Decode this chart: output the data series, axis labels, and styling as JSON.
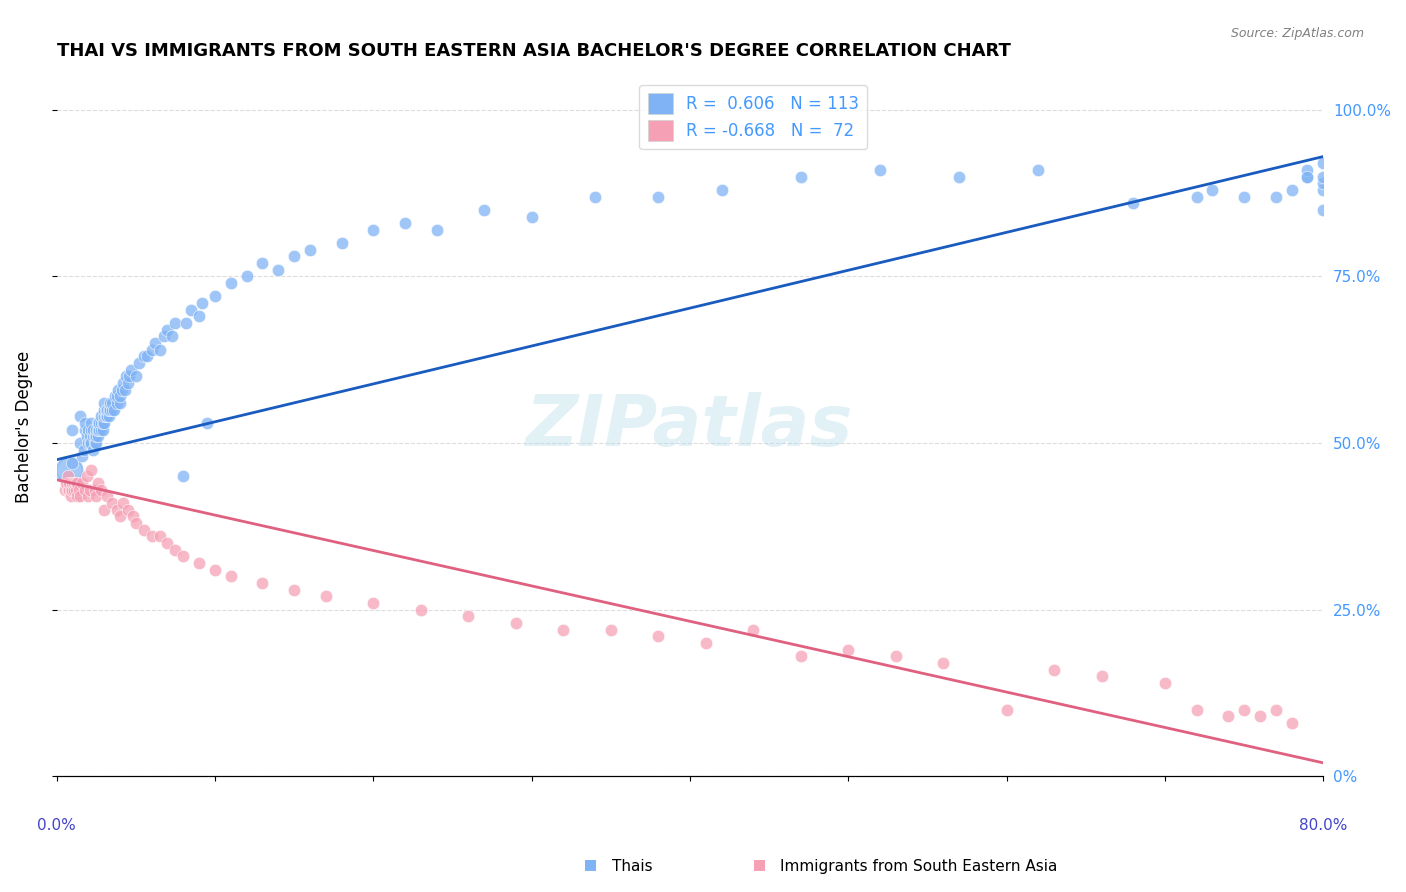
{
  "title": "THAI VS IMMIGRANTS FROM SOUTH EASTERN ASIA BACHELOR'S DEGREE CORRELATION CHART",
  "source": "Source: ZipAtlas.com",
  "ylabel": "Bachelor's Degree",
  "ytick_labels": [
    "0%",
    "25.0%",
    "50.0%",
    "75.0%",
    "100.0%"
  ],
  "ytick_values": [
    0,
    0.25,
    0.5,
    0.75,
    1.0
  ],
  "xrange": [
    0,
    0.8
  ],
  "yrange": [
    0,
    1.05
  ],
  "blue_color": "#7fb3f5",
  "pink_color": "#f5a0b5",
  "blue_line_color": "#1a5bbf",
  "pink_line_color": "#e06080",
  "legend_blue_label": "R =  0.606   N = 113",
  "legend_pink_label": "R = -0.668   N =  72",
  "watermark": "ZIPatlas",
  "bottom_legend_blue": "Thais",
  "bottom_legend_pink": "Immigrants from South Eastern Asia",
  "blue_scatter_x": [
    0.01,
    0.01,
    0.015,
    0.015,
    0.016,
    0.017,
    0.018,
    0.018,
    0.019,
    0.02,
    0.02,
    0.021,
    0.021,
    0.022,
    0.022,
    0.022,
    0.023,
    0.023,
    0.023,
    0.024,
    0.024,
    0.025,
    0.025,
    0.025,
    0.026,
    0.026,
    0.026,
    0.027,
    0.027,
    0.028,
    0.028,
    0.028,
    0.029,
    0.029,
    0.03,
    0.03,
    0.03,
    0.03,
    0.031,
    0.031,
    0.032,
    0.032,
    0.033,
    0.033,
    0.034,
    0.034,
    0.035,
    0.035,
    0.036,
    0.037,
    0.038,
    0.038,
    0.039,
    0.04,
    0.04,
    0.041,
    0.042,
    0.043,
    0.044,
    0.045,
    0.046,
    0.047,
    0.05,
    0.052,
    0.055,
    0.057,
    0.06,
    0.062,
    0.065,
    0.068,
    0.07,
    0.073,
    0.075,
    0.08,
    0.082,
    0.085,
    0.09,
    0.092,
    0.095,
    0.1,
    0.11,
    0.12,
    0.13,
    0.14,
    0.15,
    0.16,
    0.18,
    0.2,
    0.22,
    0.24,
    0.27,
    0.3,
    0.34,
    0.38,
    0.42,
    0.47,
    0.52,
    0.57,
    0.62,
    0.68,
    0.72,
    0.73,
    0.75,
    0.77,
    0.78,
    0.79,
    0.79,
    0.79,
    0.8,
    0.8,
    0.8,
    0.8,
    0.8
  ],
  "blue_scatter_y": [
    0.47,
    0.52,
    0.5,
    0.54,
    0.48,
    0.49,
    0.52,
    0.53,
    0.51,
    0.5,
    0.52,
    0.5,
    0.51,
    0.5,
    0.52,
    0.53,
    0.49,
    0.51,
    0.52,
    0.5,
    0.51,
    0.5,
    0.51,
    0.52,
    0.51,
    0.52,
    0.53,
    0.52,
    0.53,
    0.52,
    0.53,
    0.54,
    0.52,
    0.53,
    0.53,
    0.54,
    0.55,
    0.56,
    0.54,
    0.55,
    0.54,
    0.55,
    0.54,
    0.55,
    0.55,
    0.56,
    0.55,
    0.56,
    0.55,
    0.57,
    0.56,
    0.57,
    0.58,
    0.56,
    0.57,
    0.58,
    0.59,
    0.58,
    0.6,
    0.59,
    0.6,
    0.61,
    0.6,
    0.62,
    0.63,
    0.63,
    0.64,
    0.65,
    0.64,
    0.66,
    0.67,
    0.66,
    0.68,
    0.45,
    0.68,
    0.7,
    0.69,
    0.71,
    0.53,
    0.72,
    0.74,
    0.75,
    0.77,
    0.76,
    0.78,
    0.79,
    0.8,
    0.82,
    0.83,
    0.82,
    0.85,
    0.84,
    0.87,
    0.87,
    0.88,
    0.9,
    0.91,
    0.9,
    0.91,
    0.86,
    0.87,
    0.88,
    0.87,
    0.87,
    0.88,
    0.9,
    0.91,
    0.9,
    0.85,
    0.88,
    0.89,
    0.9,
    0.92
  ],
  "pink_scatter_x": [
    0.005,
    0.006,
    0.007,
    0.007,
    0.008,
    0.008,
    0.009,
    0.009,
    0.01,
    0.01,
    0.011,
    0.011,
    0.012,
    0.012,
    0.013,
    0.013,
    0.014,
    0.015,
    0.016,
    0.018,
    0.019,
    0.02,
    0.021,
    0.022,
    0.024,
    0.025,
    0.026,
    0.028,
    0.03,
    0.032,
    0.035,
    0.038,
    0.04,
    0.042,
    0.045,
    0.048,
    0.05,
    0.055,
    0.06,
    0.065,
    0.07,
    0.075,
    0.08,
    0.09,
    0.1,
    0.11,
    0.13,
    0.15,
    0.17,
    0.2,
    0.23,
    0.26,
    0.29,
    0.32,
    0.35,
    0.38,
    0.41,
    0.44,
    0.47,
    0.5,
    0.53,
    0.56,
    0.6,
    0.63,
    0.66,
    0.7,
    0.72,
    0.74,
    0.75,
    0.76,
    0.77,
    0.78
  ],
  "pink_scatter_y": [
    0.43,
    0.44,
    0.43,
    0.45,
    0.43,
    0.44,
    0.42,
    0.43,
    0.43,
    0.44,
    0.43,
    0.44,
    0.44,
    0.43,
    0.42,
    0.44,
    0.43,
    0.42,
    0.44,
    0.43,
    0.45,
    0.42,
    0.43,
    0.46,
    0.43,
    0.42,
    0.44,
    0.43,
    0.4,
    0.42,
    0.41,
    0.4,
    0.39,
    0.41,
    0.4,
    0.39,
    0.38,
    0.37,
    0.36,
    0.36,
    0.35,
    0.34,
    0.33,
    0.32,
    0.31,
    0.3,
    0.29,
    0.28,
    0.27,
    0.26,
    0.25,
    0.24,
    0.23,
    0.22,
    0.22,
    0.21,
    0.2,
    0.22,
    0.18,
    0.19,
    0.18,
    0.17,
    0.1,
    0.16,
    0.15,
    0.14,
    0.1,
    0.09,
    0.1,
    0.09,
    0.1,
    0.08
  ],
  "blue_trendline_x": [
    0.0,
    0.8
  ],
  "blue_trendline_y": [
    0.475,
    0.93
  ],
  "pink_trendline_x": [
    0.0,
    0.8
  ],
  "pink_trendline_y": [
    0.445,
    0.02
  ],
  "grid_color": "#dddddd",
  "background_color": "#ffffff",
  "title_fontsize": 13,
  "axis_label_color": "#4444cc",
  "right_ytick_color": "#4499ff"
}
